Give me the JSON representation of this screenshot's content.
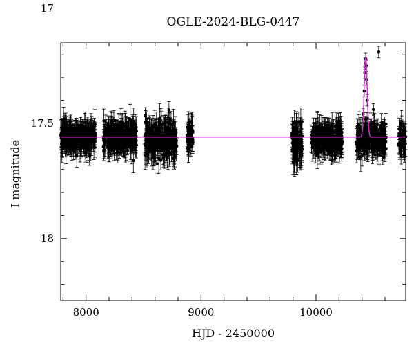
{
  "chart_data": {
    "type": "scatter",
    "title": "OGLE-2024-BLG-0447",
    "xlabel": "HJD - 2450000",
    "ylabel": "I magnitude",
    "xlim": [
      7780,
      10780
    ],
    "ylim": [
      18.27,
      17.15
    ],
    "y_inverted": true,
    "x_ticks": [
      {
        "value": 8000,
        "label": "8000"
      },
      {
        "value": 9000,
        "label": "9000"
      },
      {
        "value": 10000,
        "label": "10000"
      }
    ],
    "y_ticks": [
      {
        "value": 17,
        "label": "17"
      },
      {
        "value": 17.5,
        "label": "17.5"
      },
      {
        "value": 18,
        "label": "18"
      }
    ],
    "series": [
      {
        "kind": "observations",
        "marker": "filled-circle-with-errorbars",
        "color": "#000000",
        "seasons": [
          {
            "start": 7780,
            "end": 8080,
            "mean": 17.56,
            "scatter": 0.05,
            "err": 0.05
          },
          {
            "start": 8150,
            "end": 8440,
            "mean": 17.56,
            "scatter": 0.05,
            "err": 0.05
          },
          {
            "start": 8510,
            "end": 8790,
            "mean": 17.57,
            "scatter": 0.07,
            "err": 0.05
          },
          {
            "start": 8880,
            "end": 8930,
            "mean": 17.56,
            "scatter": 0.05,
            "err": 0.05
          },
          {
            "start": 9790,
            "end": 9880,
            "mean": 17.58,
            "scatter": 0.08,
            "err": 0.06
          },
          {
            "start": 9960,
            "end": 10230,
            "mean": 17.57,
            "scatter": 0.05,
            "err": 0.05
          },
          {
            "start": 10350,
            "end": 10610,
            "mean": 17.57,
            "scatter": 0.05,
            "err": 0.05
          },
          {
            "start": 10720,
            "end": 10780,
            "mean": 17.56,
            "scatter": 0.05,
            "err": 0.05
          }
        ],
        "peak_points": [
          {
            "x": 10420,
            "y": 17.36
          },
          {
            "x": 10425,
            "y": 17.28
          },
          {
            "x": 10428,
            "y": 17.24
          },
          {
            "x": 10432,
            "y": 17.22
          },
          {
            "x": 10436,
            "y": 17.25
          },
          {
            "x": 10440,
            "y": 17.31
          },
          {
            "x": 10445,
            "y": 17.4
          },
          {
            "x": 10450,
            "y": 17.48
          },
          {
            "x": 10410,
            "y": 17.46
          },
          {
            "x": 10500,
            "y": 17.44
          },
          {
            "x": 10545,
            "y": 17.19
          }
        ]
      },
      {
        "kind": "model",
        "color": "#cc33cc",
        "baseline": 17.56,
        "peak_x": 10432,
        "peak_y": 17.21,
        "width": 13
      }
    ]
  }
}
